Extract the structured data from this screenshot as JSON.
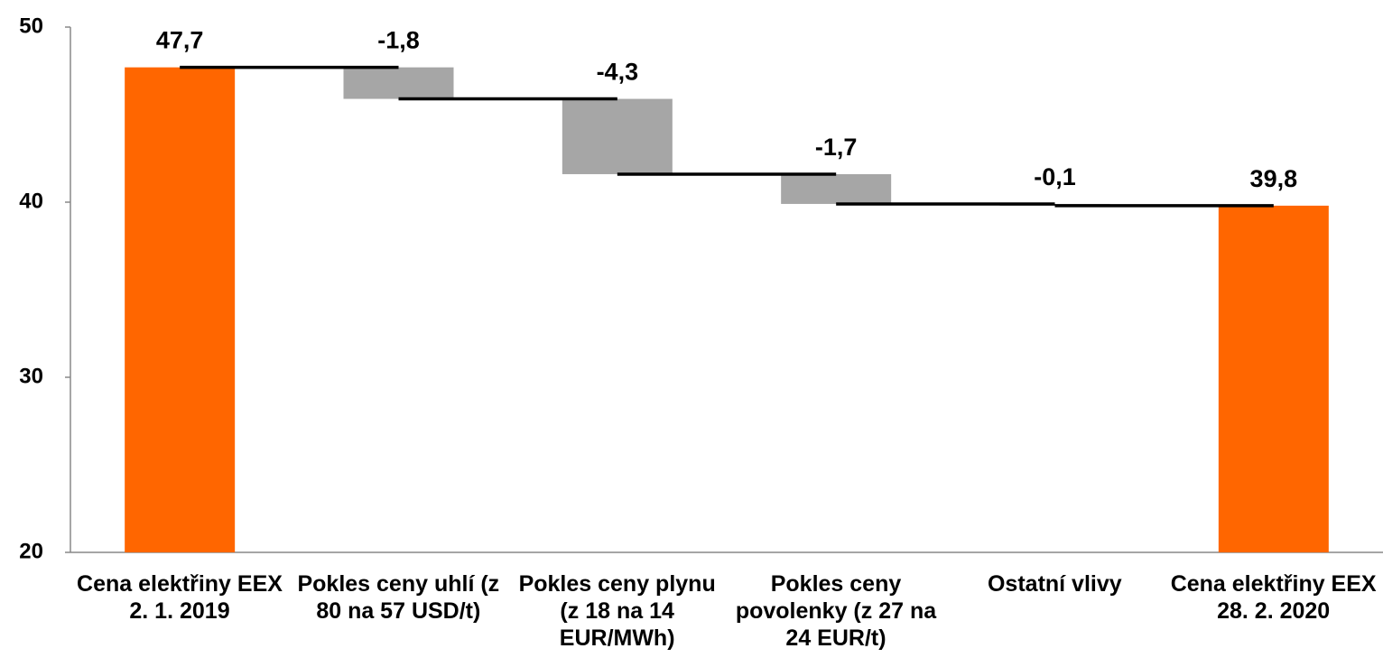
{
  "chart_data": {
    "type": "waterfall",
    "categories": [
      "Cena elektřiny EEX 2. 1. 2019",
      "Pokles ceny uhlí (z 80 na 57 USD/t)",
      "Pokles ceny plynu (z 18 na 14 EUR/MWh)",
      "Pokles ceny povolenky (z 27 na 24 EUR/t)",
      "Ostatní vlivy",
      "Cena elektřiny EEX 28. 2. 2020"
    ],
    "values": [
      47.7,
      -1.8,
      -4.3,
      -1.7,
      -0.1,
      39.8
    ],
    "value_labels": [
      "47,7",
      "-1,8",
      "-4,3",
      "-1,7",
      "-0,1",
      "39,8"
    ],
    "measure": [
      "absolute",
      "relative",
      "relative",
      "relative",
      "relative",
      "absolute"
    ],
    "colors": [
      "#ff6600",
      "#a6a6a6",
      "#a6a6a6",
      "#a6a6a6",
      "#a6a6a6",
      "#ff6600"
    ],
    "ylim": [
      20,
      50
    ],
    "yticks": [
      20,
      30,
      40,
      50
    ],
    "grid": false
  }
}
